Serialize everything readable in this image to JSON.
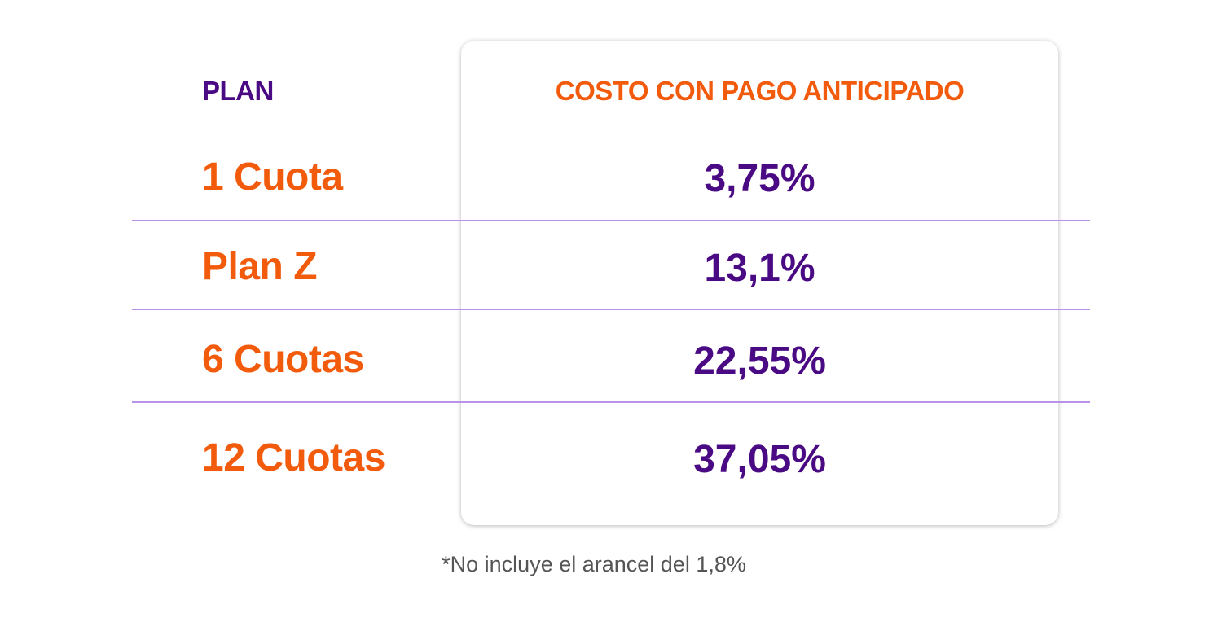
{
  "table": {
    "header_plan": "PLAN",
    "header_cost": "COSTO CON PAGO ANTICIPADO",
    "rows": [
      {
        "plan": "1 Cuota",
        "cost": "3,75%"
      },
      {
        "plan": "Plan Z",
        "cost": "13,1%"
      },
      {
        "plan": "6 Cuotas",
        "cost": "22,55%"
      },
      {
        "plan": "12 Cuotas",
        "cost": "37,05%"
      }
    ]
  },
  "footnote": "*No incluye el arancel del 1,8%",
  "colors": {
    "orange": "#f25a0c",
    "purple": "#4a0a84",
    "divider": "#b792e6"
  }
}
